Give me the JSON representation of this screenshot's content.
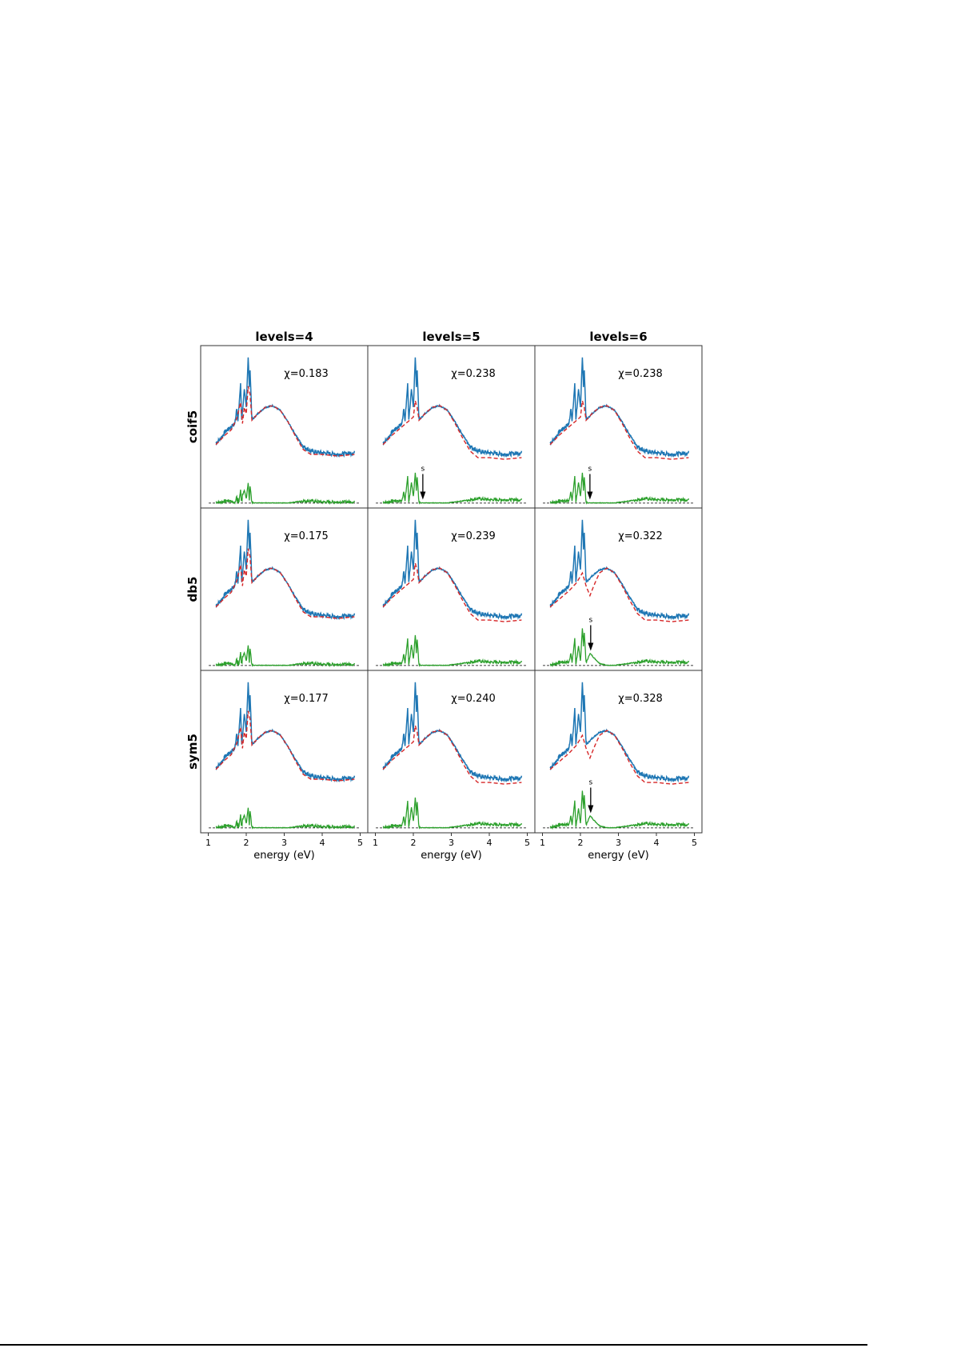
{
  "chart_data": {
    "type": "line",
    "layout": "3x3 grid",
    "column_titles": [
      "levels=4",
      "levels=5",
      "levels=6"
    ],
    "row_labels": [
      "coif5",
      "db5",
      "sym5"
    ],
    "xlabel": "energy (eV)",
    "xticks": [
      1,
      2,
      3,
      4,
      5
    ],
    "xlim": [
      0.8,
      5.2
    ],
    "ylim": [
      0,
      1
    ],
    "y_units": "arbitrary",
    "grid": false,
    "colors": {
      "observed": "#1f77b4",
      "fitted": "#d62728",
      "residual": "#2ca02c",
      "baseline": "#000000",
      "arrow": "#000000"
    },
    "observed": [
      [
        1.2,
        0.4
      ],
      [
        1.3,
        0.42
      ],
      [
        1.45,
        0.47
      ],
      [
        1.6,
        0.5
      ],
      [
        1.7,
        0.52
      ],
      [
        1.75,
        0.62
      ],
      [
        1.78,
        0.53
      ],
      [
        1.85,
        0.76
      ],
      [
        1.88,
        0.55
      ],
      [
        1.95,
        0.72
      ],
      [
        2.0,
        0.62
      ],
      [
        2.05,
        0.93
      ],
      [
        2.08,
        0.75
      ],
      [
        2.1,
        0.86
      ],
      [
        2.15,
        0.54
      ],
      [
        2.3,
        0.58
      ],
      [
        2.5,
        0.62
      ],
      [
        2.7,
        0.63
      ],
      [
        2.9,
        0.6
      ],
      [
        3.1,
        0.53
      ],
      [
        3.3,
        0.45
      ],
      [
        3.5,
        0.38
      ],
      [
        3.7,
        0.35
      ],
      [
        4.0,
        0.34
      ],
      [
        4.4,
        0.33
      ],
      [
        4.85,
        0.34
      ]
    ],
    "fitted_variants": {
      "A": [
        [
          1.2,
          0.39
        ],
        [
          1.45,
          0.45
        ],
        [
          1.6,
          0.48
        ],
        [
          1.75,
          0.55
        ],
        [
          1.85,
          0.65
        ],
        [
          1.9,
          0.52
        ],
        [
          1.95,
          0.62
        ],
        [
          2.0,
          0.58
        ],
        [
          2.05,
          0.75
        ],
        [
          2.1,
          0.7
        ],
        [
          2.15,
          0.54
        ],
        [
          2.3,
          0.58
        ],
        [
          2.5,
          0.62
        ],
        [
          2.7,
          0.63
        ],
        [
          2.9,
          0.6
        ],
        [
          3.1,
          0.53
        ],
        [
          3.3,
          0.44
        ],
        [
          3.5,
          0.36
        ],
        [
          3.7,
          0.33
        ],
        [
          4.0,
          0.33
        ],
        [
          4.4,
          0.32
        ],
        [
          4.85,
          0.33
        ]
      ],
      "B": [
        [
          1.2,
          0.39
        ],
        [
          1.45,
          0.45
        ],
        [
          1.6,
          0.48
        ],
        [
          1.8,
          0.52
        ],
        [
          2.0,
          0.56
        ],
        [
          2.05,
          0.66
        ],
        [
          2.1,
          0.62
        ],
        [
          2.15,
          0.54
        ],
        [
          2.3,
          0.58
        ],
        [
          2.5,
          0.62
        ],
        [
          2.7,
          0.63
        ],
        [
          2.9,
          0.6
        ],
        [
          3.1,
          0.52
        ],
        [
          3.3,
          0.43
        ],
        [
          3.5,
          0.35
        ],
        [
          3.7,
          0.31
        ],
        [
          4.0,
          0.31
        ],
        [
          4.4,
          0.3
        ],
        [
          4.85,
          0.31
        ]
      ],
      "C": [
        [
          1.2,
          0.39
        ],
        [
          1.45,
          0.44
        ],
        [
          1.7,
          0.49
        ],
        [
          1.9,
          0.54
        ],
        [
          2.05,
          0.6
        ],
        [
          2.15,
          0.52
        ],
        [
          2.25,
          0.46
        ],
        [
          2.35,
          0.52
        ],
        [
          2.5,
          0.6
        ],
        [
          2.7,
          0.63
        ],
        [
          2.9,
          0.6
        ],
        [
          3.1,
          0.52
        ],
        [
          3.3,
          0.43
        ],
        [
          3.5,
          0.35
        ],
        [
          3.7,
          0.31
        ],
        [
          4.0,
          0.31
        ],
        [
          4.4,
          0.3
        ],
        [
          4.85,
          0.31
        ]
      ]
    },
    "residual_baseline": 0.03,
    "panels": [
      {
        "row": 0,
        "col": 0,
        "chi": "χ=0.183",
        "fit": "A",
        "arrow": null
      },
      {
        "row": 0,
        "col": 1,
        "chi": "χ=0.238",
        "fit": "B",
        "arrow": {
          "label": "s",
          "energy": 2.25
        }
      },
      {
        "row": 0,
        "col": 2,
        "chi": "χ=0.238",
        "fit": "B",
        "arrow": {
          "label": "s",
          "energy": 2.25
        }
      },
      {
        "row": 1,
        "col": 0,
        "chi": "χ=0.175",
        "fit": "A",
        "arrow": null
      },
      {
        "row": 1,
        "col": 1,
        "chi": "χ=0.239",
        "fit": "B",
        "arrow": null
      },
      {
        "row": 1,
        "col": 2,
        "chi": "χ=0.322",
        "fit": "C",
        "arrow": {
          "label": "s",
          "energy": 2.27
        }
      },
      {
        "row": 2,
        "col": 0,
        "chi": "χ=0.177",
        "fit": "A",
        "arrow": null
      },
      {
        "row": 2,
        "col": 1,
        "chi": "χ=0.240",
        "fit": "B",
        "arrow": null
      },
      {
        "row": 2,
        "col": 2,
        "chi": "χ=0.328",
        "fit": "C",
        "arrow": {
          "label": "s",
          "energy": 2.27
        }
      }
    ]
  }
}
